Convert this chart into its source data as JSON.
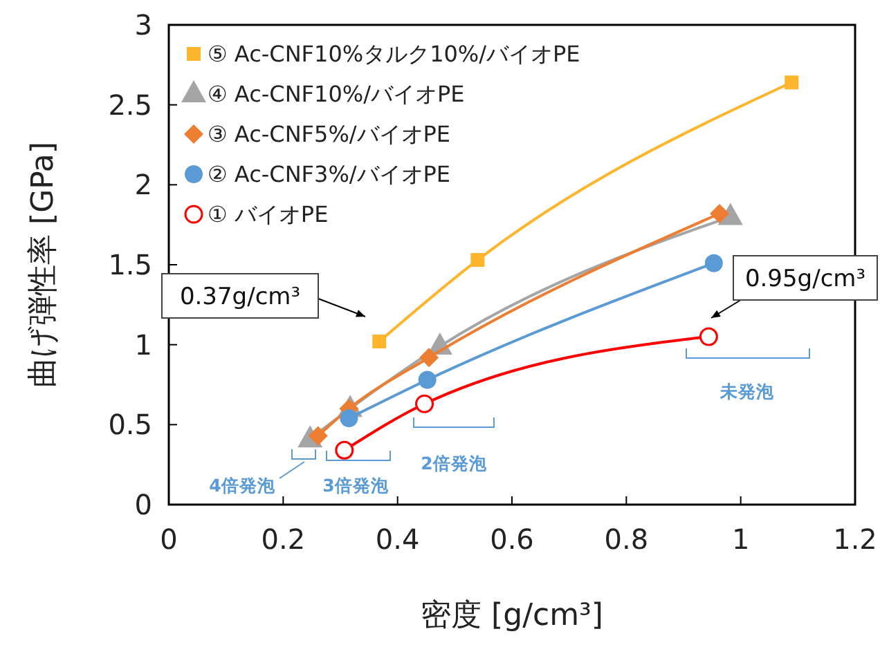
{
  "chart_data": {
    "type": "line",
    "xlabel": "密度 [g/cm³]",
    "ylabel": "曲げ弾性率 [GPa]",
    "xlim": [
      0,
      1.2
    ],
    "xticks": [
      0,
      0.2,
      0.4,
      0.6,
      0.8,
      1,
      1.2
    ],
    "ylim": [
      0,
      3
    ],
    "yticks": [
      0,
      0.5,
      1,
      1.5,
      2,
      2.5,
      3
    ],
    "grid": false,
    "legend": "top left",
    "series": [
      {
        "name": "⑤ Ac-CNF10%タルク10%/バイオPE",
        "color": "#ffb52b",
        "marker": "square",
        "x": [
          0.368,
          0.54,
          1.089
        ],
        "values": [
          1.02,
          1.53,
          2.64
        ]
      },
      {
        "name": "④ Ac-CNF10%/バイオPE",
        "color": "#a5a5a5",
        "marker": "triangle",
        "x": [
          0.247,
          0.317,
          0.474,
          0.982
        ],
        "values": [
          0.41,
          0.6,
          0.99,
          1.8
        ]
      },
      {
        "name": "③ Ac-CNF5%/バイオPE",
        "color": "#ed7d31",
        "marker": "diamond",
        "x": [
          0.261,
          0.315,
          0.455,
          0.963
        ],
        "values": [
          0.43,
          0.6,
          0.92,
          1.82
        ]
      },
      {
        "name": "② Ac-CNF3%/バイオPE",
        "color": "#5b9bd5",
        "marker": "circle",
        "x": [
          0.315,
          0.452,
          0.953
        ],
        "values": [
          0.54,
          0.78,
          1.51
        ]
      },
      {
        "name": "① バイオPE",
        "color": "#ff0000",
        "marker": "open-circle",
        "x": [
          0.307,
          0.447,
          0.944
        ],
        "values": [
          0.34,
          0.63,
          1.05
        ]
      }
    ],
    "annotations": [
      "0.37g/cm³",
      "0.95g/cm³",
      "4倍発泡",
      "3倍発泡",
      "2倍発泡",
      "未発泡"
    ]
  }
}
